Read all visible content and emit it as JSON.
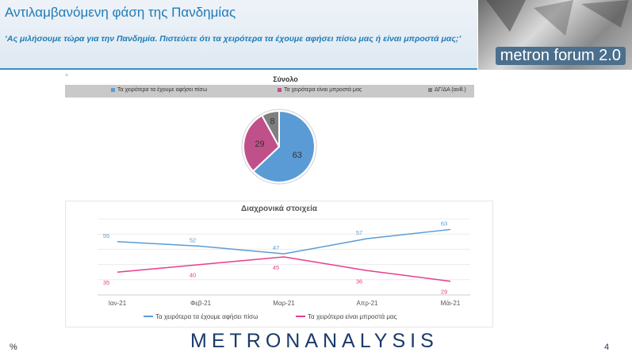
{
  "header": {
    "title": "Αντιλαμβανόμενη φάση της Πανδημίας",
    "subtitle": "‘Ας μιλήσουμε τώρα για την Πανδημία. Πιστεύετε ότι τα χειρότερα τα έχουμε αφήσει πίσω μας ή είναι μπροστά μας;’",
    "logo_text": "metron forum 2.0"
  },
  "footer": {
    "unit": "%",
    "brand": "METRONANALYSIS",
    "page_number": "4"
  },
  "colors": {
    "blue": "#5b9bd5",
    "pink": "#c0508a",
    "pink_line": "#e83e8c",
    "gray": "#7f7f7f",
    "accent": "#1f7bb6"
  },
  "chart_data": [
    {
      "type": "pie",
      "title": "Σύνολο",
      "legend_position": "top",
      "categories": [
        "Τα χειρότερα τα έχουμε αφήσει πίσω",
        "Τα χειρότερα είναι μπροστά μας",
        "ΔΓ/ΔΑ (αυθ.)"
      ],
      "values": [
        63,
        29,
        8
      ],
      "colors": [
        "#5b9bd5",
        "#c0508a",
        "#7f7f7f"
      ]
    },
    {
      "type": "line",
      "title": "Διαχρονικά στοιχεία",
      "legend_position": "bottom",
      "grid": true,
      "categories": [
        "Ιαν-21",
        "Φεβ-21",
        "Μαρ-21",
        "Απρ-21",
        "Μάι-21"
      ],
      "series": [
        {
          "name": "Τα χειρότερα τα έχουμε αφήσει πίσω",
          "values": [
            55,
            52,
            47,
            57,
            63
          ],
          "color": "#5b9bd5"
        },
        {
          "name": "Τα χειρότερα είναι μπροστά μας",
          "values": [
            35,
            40,
            45,
            36,
            29
          ],
          "color": "#e83e8c"
        }
      ],
      "ylim": [
        20,
        70
      ]
    }
  ]
}
